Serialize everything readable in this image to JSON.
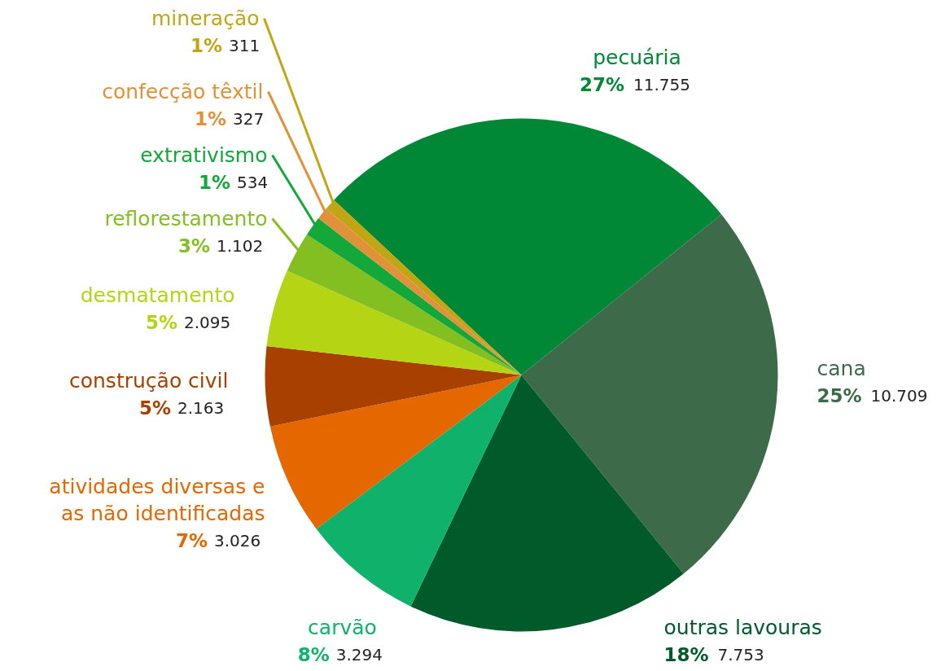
{
  "chart_data": {
    "type": "pie",
    "categories": [
      "pecuária",
      "cana",
      "outras lavouras",
      "carvão",
      "atividades diversas e as não identificadas",
      "construção civil",
      "desmatamento",
      "reflorestamento",
      "extrativismo",
      "confecção têxtil",
      "mineração"
    ],
    "values": [
      11755,
      10709,
      7753,
      3294,
      3026,
      2163,
      2095,
      1102,
      534,
      327,
      311
    ],
    "value_labels": [
      "27% 11.755",
      "25% 10.709",
      "18% 7.753",
      "8% 3.294",
      "7% 3.026",
      "5% 2.163",
      "5% 2.095",
      "3% 1.102",
      "1% 534",
      "1% 327",
      "1% 311"
    ],
    "colors": [
      "#008837",
      "#3d6b4a",
      "#005a2a",
      "#10b26b",
      "#e56700",
      "#a84000",
      "#b5d414",
      "#84bf22",
      "#14a83a",
      "#e0913a",
      "#c2a514"
    ]
  }
}
